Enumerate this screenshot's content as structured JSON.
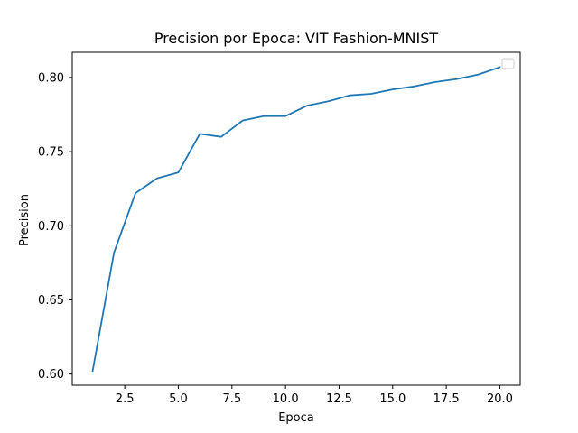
{
  "chart_data": {
    "type": "line",
    "title": "Precision por Epoca: VIT Fashion-MNIST",
    "xlabel": "Epoca",
    "ylabel": "Precision",
    "xlim": [
      0.05,
      20.95
    ],
    "ylim": [
      0.5925,
      0.817
    ],
    "x_ticks": [
      2.5,
      5.0,
      7.5,
      10.0,
      12.5,
      15.0,
      17.5,
      20.0
    ],
    "x_tick_labels": [
      "2.5",
      "5.0",
      "7.5",
      "10.0",
      "12.5",
      "15.0",
      "17.5",
      "20.0"
    ],
    "y_ticks": [
      0.6,
      0.65,
      0.7,
      0.75,
      0.8
    ],
    "y_tick_labels": [
      "0.60",
      "0.65",
      "0.70",
      "0.75",
      "0.80"
    ],
    "grid": false,
    "legend": {
      "placement": "top-right",
      "entries": []
    },
    "series": [
      {
        "color": "#1f77b4",
        "x": [
          1,
          2,
          3,
          4,
          5,
          6,
          7,
          8,
          9,
          10,
          11,
          12,
          13,
          14,
          15,
          16,
          17,
          18,
          19,
          20
        ],
        "values": [
          0.602,
          0.682,
          0.722,
          0.732,
          0.736,
          0.762,
          0.76,
          0.771,
          0.774,
          0.774,
          0.781,
          0.784,
          0.788,
          0.789,
          0.792,
          0.794,
          0.797,
          0.799,
          0.802,
          0.807
        ]
      }
    ]
  }
}
